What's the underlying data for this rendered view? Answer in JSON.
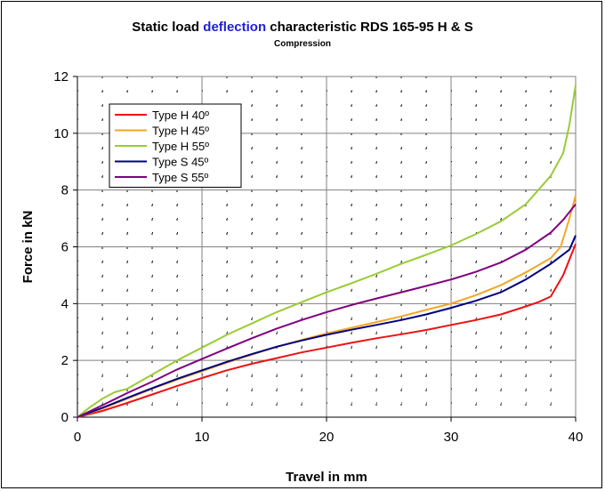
{
  "chart_data": {
    "type": "line",
    "title_parts": [
      {
        "text": "Static load ",
        "accent": false
      },
      {
        "text": "deflection",
        "accent": true
      },
      {
        "text": " characteristic RDS 165-95 H & S",
        "accent": false
      }
    ],
    "subtitle": "Compression",
    "xlabel": "Travel in mm",
    "ylabel": "Force in kN",
    "xlim": [
      0,
      40
    ],
    "ylim": [
      0,
      12
    ],
    "xticks": [
      "0",
      "10",
      "20",
      "30",
      "40"
    ],
    "yticks": [
      "0",
      "2",
      "4",
      "6",
      "8",
      "10",
      "12"
    ],
    "grid": true,
    "legend_position": "top-left",
    "series": [
      {
        "name": "Type H 40º",
        "color": "#ee1111",
        "points": [
          [
            0,
            0
          ],
          [
            2,
            0.22
          ],
          [
            4,
            0.5
          ],
          [
            6,
            0.8
          ],
          [
            8,
            1.1
          ],
          [
            10,
            1.38
          ],
          [
            12,
            1.65
          ],
          [
            14,
            1.88
          ],
          [
            16,
            2.08
          ],
          [
            18,
            2.28
          ],
          [
            20,
            2.45
          ],
          [
            22,
            2.62
          ],
          [
            24,
            2.78
          ],
          [
            26,
            2.92
          ],
          [
            28,
            3.07
          ],
          [
            30,
            3.25
          ],
          [
            32,
            3.42
          ],
          [
            34,
            3.62
          ],
          [
            36,
            3.9
          ],
          [
            37,
            4.05
          ],
          [
            38,
            4.25
          ],
          [
            39,
            5.0
          ],
          [
            40,
            6.1
          ]
        ]
      },
      {
        "name": "Type H 45º",
        "color": "#f5a623",
        "points": [
          [
            0,
            0
          ],
          [
            2,
            0.3
          ],
          [
            4,
            0.65
          ],
          [
            6,
            1.0
          ],
          [
            8,
            1.32
          ],
          [
            10,
            1.62
          ],
          [
            12,
            1.92
          ],
          [
            14,
            2.2
          ],
          [
            16,
            2.48
          ],
          [
            18,
            2.72
          ],
          [
            20,
            2.95
          ],
          [
            22,
            3.15
          ],
          [
            24,
            3.35
          ],
          [
            26,
            3.55
          ],
          [
            28,
            3.78
          ],
          [
            30,
            4.0
          ],
          [
            32,
            4.3
          ],
          [
            34,
            4.65
          ],
          [
            36,
            5.1
          ],
          [
            38,
            5.6
          ],
          [
            38.8,
            6.0
          ],
          [
            39.5,
            7.0
          ],
          [
            40,
            7.8
          ]
        ]
      },
      {
        "name": "Type H 55º",
        "color": "#99cc33",
        "points": [
          [
            0,
            0
          ],
          [
            1,
            0.35
          ],
          [
            2,
            0.65
          ],
          [
            3,
            0.88
          ],
          [
            4,
            1.0
          ],
          [
            6,
            1.5
          ],
          [
            8,
            2.0
          ],
          [
            10,
            2.45
          ],
          [
            12,
            2.9
          ],
          [
            14,
            3.3
          ],
          [
            16,
            3.7
          ],
          [
            18,
            4.05
          ],
          [
            20,
            4.4
          ],
          [
            22,
            4.72
          ],
          [
            24,
            5.05
          ],
          [
            26,
            5.4
          ],
          [
            28,
            5.72
          ],
          [
            30,
            6.05
          ],
          [
            32,
            6.45
          ],
          [
            34,
            6.9
          ],
          [
            36,
            7.5
          ],
          [
            38,
            8.5
          ],
          [
            39,
            9.3
          ],
          [
            39.5,
            10.3
          ],
          [
            40,
            11.7
          ]
        ]
      },
      {
        "name": "Type S 45º",
        "color": "#000080",
        "points": [
          [
            0,
            0
          ],
          [
            2,
            0.33
          ],
          [
            4,
            0.68
          ],
          [
            6,
            1.02
          ],
          [
            8,
            1.35
          ],
          [
            10,
            1.65
          ],
          [
            12,
            1.95
          ],
          [
            14,
            2.22
          ],
          [
            16,
            2.48
          ],
          [
            18,
            2.7
          ],
          [
            20,
            2.9
          ],
          [
            22,
            3.08
          ],
          [
            24,
            3.25
          ],
          [
            26,
            3.42
          ],
          [
            28,
            3.62
          ],
          [
            30,
            3.85
          ],
          [
            32,
            4.1
          ],
          [
            34,
            4.4
          ],
          [
            36,
            4.85
          ],
          [
            38,
            5.4
          ],
          [
            39.5,
            5.9
          ],
          [
            40,
            6.4
          ]
        ]
      },
      {
        "name": "Type S 55º",
        "color": "#800080",
        "points": [
          [
            0,
            0
          ],
          [
            2,
            0.42
          ],
          [
            4,
            0.85
          ],
          [
            6,
            1.25
          ],
          [
            8,
            1.68
          ],
          [
            10,
            2.05
          ],
          [
            12,
            2.42
          ],
          [
            14,
            2.78
          ],
          [
            16,
            3.12
          ],
          [
            18,
            3.42
          ],
          [
            20,
            3.7
          ],
          [
            22,
            3.95
          ],
          [
            24,
            4.18
          ],
          [
            26,
            4.4
          ],
          [
            28,
            4.62
          ],
          [
            30,
            4.85
          ],
          [
            32,
            5.12
          ],
          [
            34,
            5.45
          ],
          [
            36,
            5.9
          ],
          [
            38,
            6.5
          ],
          [
            39,
            6.95
          ],
          [
            40,
            7.5
          ]
        ]
      }
    ]
  }
}
